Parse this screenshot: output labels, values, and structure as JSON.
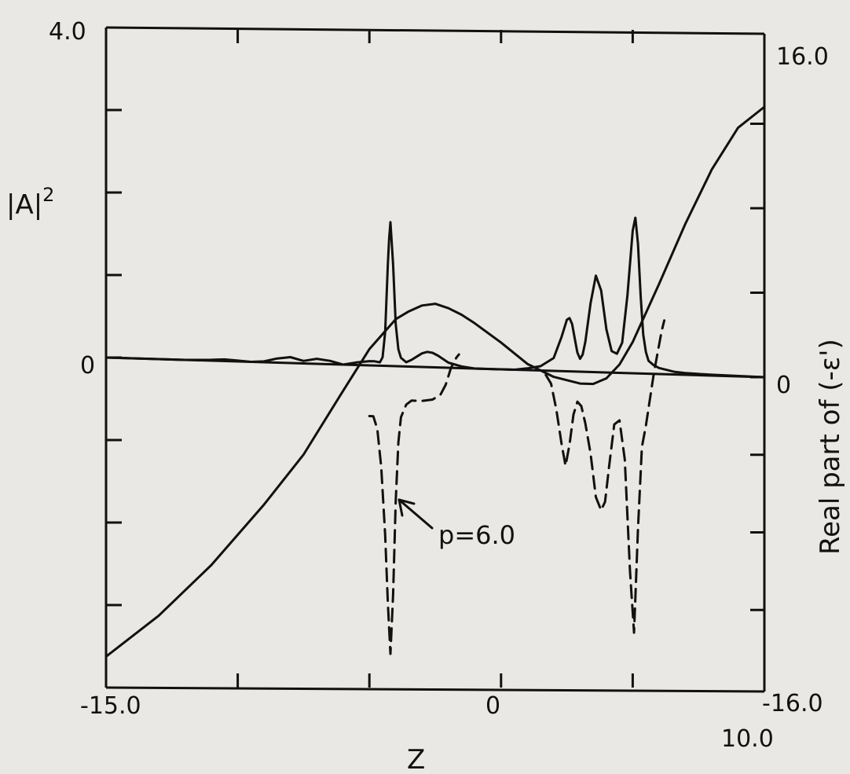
{
  "chart_data": {
    "type": "line",
    "xlabel": "Z",
    "y_left_label": "|A|",
    "y_left_label_superscript": "2",
    "y_right_label": "Real part of (-ε')",
    "xlim": [
      -15.0,
      10.0
    ],
    "y_left_lim": [
      -4.0,
      4.0
    ],
    "y_right_lim": [
      -16.0,
      16.0
    ],
    "x_tick_labels": [
      {
        "value": -15.0,
        "label": "-15.0"
      },
      {
        "value": 0,
        "label": "0"
      },
      {
        "value": 10.0,
        "label": "10.0"
      }
    ],
    "y_left_tick_labels": [
      {
        "value": 4.0,
        "label": "4.0"
      },
      {
        "value": 0,
        "label": "0"
      }
    ],
    "y_right_tick_labels": [
      {
        "value": 16.0,
        "label": "16.0"
      },
      {
        "value": 0,
        "label": "0"
      },
      {
        "value": -16.0,
        "label": "-16.0"
      }
    ],
    "x_ticks": [
      -10,
      -5,
      0,
      5
    ],
    "y_left_ticks": [
      -2,
      0,
      2
    ],
    "y_right_ticks": [
      -12,
      -8,
      -4,
      0,
      4,
      8,
      12
    ],
    "grid": false,
    "annotations": [
      {
        "text": "p=6.0",
        "points_to": {
          "x": -4.2,
          "y": -3.4
        }
      }
    ],
    "series": [
      {
        "key": "eps",
        "axis": "right",
        "style": "solid",
        "x": [
          -15.0,
          -13.0,
          -11.0,
          -9.0,
          -7.5,
          -6.0,
          -5.0,
          -4.0,
          -3.5,
          -3.0,
          -2.5,
          -2.0,
          -1.5,
          -1.0,
          0.0,
          1.0,
          2.0,
          3.0,
          3.5,
          4.0,
          4.5,
          5.0,
          6.0,
          7.0,
          8.0,
          9.0,
          10.0
        ],
        "y": [
          -14.5,
          -12.5,
          -10.0,
          -7.0,
          -4.5,
          -1.3,
          0.8,
          2.3,
          2.7,
          3.0,
          3.1,
          2.9,
          2.6,
          2.2,
          1.3,
          0.3,
          -0.3,
          -0.6,
          -0.6,
          -0.3,
          0.4,
          1.5,
          4.3,
          7.2,
          9.8,
          11.8,
          12.8
        ]
      },
      {
        "key": "a2",
        "axis": "left",
        "style": "solid",
        "x": [
          -15.0,
          -12.0,
          -11.0,
          -10.5,
          -10.0,
          -9.5,
          -9.0,
          -8.5,
          -8.0,
          -7.5,
          -7.0,
          -6.5,
          -6.0,
          -5.5,
          -5.0,
          -4.8,
          -4.6,
          -4.5,
          -4.4,
          -4.3,
          -4.25,
          -4.2,
          -4.1,
          -4.0,
          -3.9,
          -3.8,
          -3.6,
          -3.4,
          -3.2,
          -3.0,
          -2.8,
          -2.6,
          -2.4,
          -2.2,
          -2.0,
          -1.5,
          -1.0,
          -0.5,
          0.0,
          0.5,
          1.0,
          1.5,
          2.0,
          2.3,
          2.5,
          2.6,
          2.7,
          2.8,
          2.9,
          3.0,
          3.1,
          3.2,
          3.4,
          3.6,
          3.8,
          4.0,
          4.2,
          4.4,
          4.6,
          4.8,
          5.0,
          5.1,
          5.2,
          5.3,
          5.4,
          5.5,
          5.6,
          5.8,
          6.0,
          6.3,
          6.6,
          7.0,
          8.0,
          10.0
        ],
        "y": [
          0.0,
          0.0,
          0.01,
          0.02,
          0.01,
          0.0,
          0.01,
          0.05,
          0.07,
          0.03,
          0.06,
          0.04,
          0.0,
          0.03,
          0.05,
          0.05,
          0.04,
          0.1,
          0.4,
          1.2,
          1.5,
          1.7,
          1.2,
          0.5,
          0.2,
          0.1,
          0.05,
          0.08,
          0.12,
          0.16,
          0.18,
          0.17,
          0.14,
          0.1,
          0.06,
          0.02,
          0.0,
          0.0,
          0.0,
          0.0,
          0.02,
          0.05,
          0.15,
          0.4,
          0.6,
          0.62,
          0.55,
          0.38,
          0.22,
          0.15,
          0.2,
          0.35,
          0.8,
          1.12,
          0.95,
          0.5,
          0.25,
          0.22,
          0.35,
          0.9,
          1.65,
          1.8,
          1.5,
          0.9,
          0.45,
          0.25,
          0.15,
          0.1,
          0.07,
          0.05,
          0.03,
          0.02,
          0.01,
          0.0
        ]
      },
      {
        "key": "dashed",
        "axis": "left",
        "style": "dashed",
        "x": [
          -5.0,
          -4.85,
          -4.7,
          -4.55,
          -4.4,
          -4.3,
          -4.2,
          -4.1,
          -4.0,
          -3.9,
          -3.8,
          -3.6,
          -3.4,
          -3.0,
          -2.6,
          -2.3,
          -2.1,
          -1.9,
          -1.7,
          -1.6
        ],
        "y": [
          -0.6,
          -0.6,
          -0.75,
          -1.2,
          -2.0,
          -2.8,
          -3.4,
          -2.7,
          -1.6,
          -0.9,
          -0.6,
          -0.45,
          -0.4,
          -0.4,
          -0.38,
          -0.32,
          -0.2,
          0.0,
          0.12,
          0.16
        ]
      },
      {
        "key": "dashed",
        "axis": "left",
        "style": "dashed",
        "x": [
          1.7,
          1.9,
          2.1,
          2.3,
          2.45,
          2.6,
          2.75,
          2.9,
          3.05,
          3.2,
          3.4,
          3.6,
          3.8,
          3.95,
          4.1,
          4.3,
          4.5,
          4.7,
          4.9,
          5.05,
          5.2,
          5.35,
          5.5,
          5.65,
          5.8,
          5.95,
          6.1,
          6.2
        ],
        "y": [
          -0.05,
          -0.15,
          -0.45,
          -0.85,
          -1.1,
          -0.85,
          -0.5,
          -0.35,
          -0.4,
          -0.6,
          -0.95,
          -1.45,
          -1.6,
          -1.5,
          -1.1,
          -0.6,
          -0.55,
          -1.0,
          -2.3,
          -3.0,
          -1.8,
          -0.85,
          -0.6,
          -0.3,
          0.0,
          0.25,
          0.5,
          0.62
        ]
      }
    ]
  }
}
